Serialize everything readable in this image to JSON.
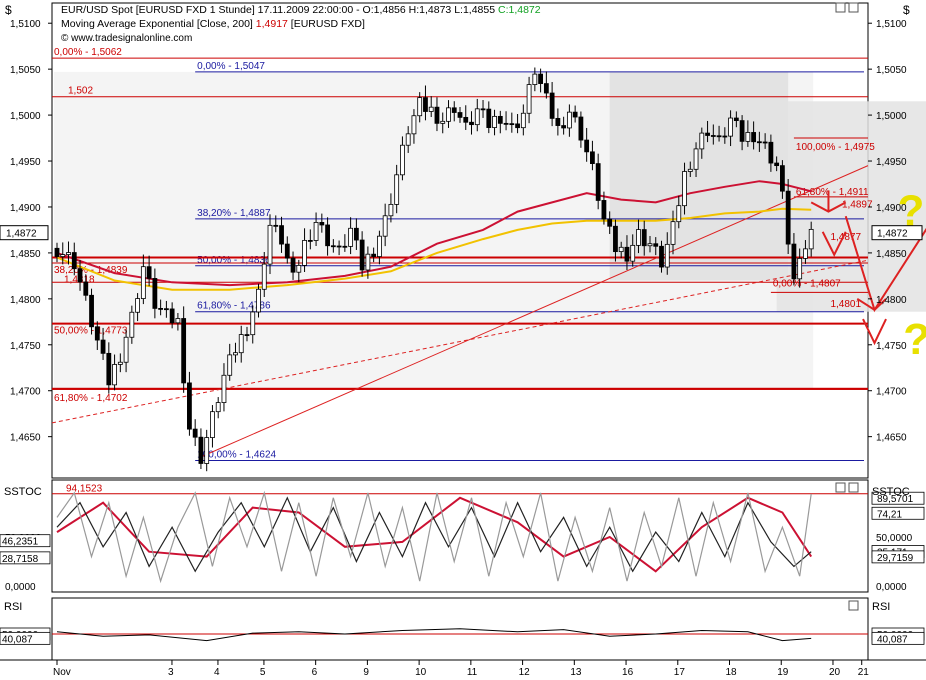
{
  "header": {
    "line1_a": "EUR/USD Spot [EURUSD FXD  1 Stunde] 17.11.2009 22:00:00 - O:1,4856 H:1,4873 L:1,4855 ",
    "line1_b": "C:1,4872",
    "line2_a": "Moving Average Exponential [Close, 200] ",
    "line2_b": "1,4917",
    "line2_c": " [EURUSD FXD]",
    "line3": "© www.tradesignalonline.com"
  },
  "panel_labels": {
    "currency": "$",
    "sstoc": "SSTOC",
    "rsi": "RSI"
  },
  "colors": {
    "candles": "#000000",
    "ema200": "#cc1133",
    "ema_yellow": "#f2c200",
    "fib_blue": "#1a1aa0",
    "fib_red": "#cc0000",
    "trend_red": "#dd2222",
    "annot_yellow": "#e8e000",
    "shade": "#e3e3e3",
    "stoch_red": "#cc1133",
    "stoch_black": "#222222",
    "stoch_gray": "#999999"
  },
  "chart_data": [
    {
      "type": "candlestick",
      "instrument": "EUR/USD Spot [EURUSD FXD 1 Stunde]",
      "timestamp": "17.11.2009 22:00:00",
      "last_bar": {
        "open": 1.4856,
        "high": 1.4873,
        "low": 1.4855,
        "close": 1.4872
      },
      "ylim": [
        1.4605,
        1.5122
      ],
      "y_ticks": [
        "1,5100",
        "1,5050",
        "1,5000",
        "1,4950",
        "1,4900",
        "1,4850",
        "1,4800",
        "1,4750",
        "1,4700",
        "1,4650"
      ],
      "x_ticks": [
        "Nov",
        "3",
        "4",
        "5",
        "6",
        "9",
        "10",
        "11",
        "12",
        "13",
        "16",
        "17",
        "18",
        "19",
        "20",
        "21"
      ],
      "price_path": [
        [
          0,
          1.4855
        ],
        [
          3,
          1.484
        ],
        [
          6,
          1.4775
        ],
        [
          9,
          1.471
        ],
        [
          11,
          1.474
        ],
        [
          13,
          1.478
        ],
        [
          15,
          1.4835
        ],
        [
          17,
          1.4795
        ],
        [
          19,
          1.478
        ],
        [
          21,
          1.4775
        ],
        [
          23,
          1.466
        ],
        [
          25,
          1.4628
        ],
        [
          27,
          1.467
        ],
        [
          29,
          1.4715
        ],
        [
          31,
          1.4745
        ],
        [
          33,
          1.477
        ],
        [
          35,
          1.4805
        ],
        [
          36,
          1.4845
        ],
        [
          37,
          1.488
        ],
        [
          39,
          1.4865
        ],
        [
          41,
          1.482
        ],
        [
          43,
          1.486
        ],
        [
          45,
          1.4885
        ],
        [
          47,
          1.4865
        ],
        [
          49,
          1.485
        ],
        [
          51,
          1.4875
        ],
        [
          53,
          1.4835
        ],
        [
          55,
          1.4855
        ],
        [
          57,
          1.4885
        ],
        [
          59,
          1.4935
        ],
        [
          61,
          1.4985
        ],
        [
          63,
          1.501
        ],
        [
          65,
          1.5005
        ],
        [
          67,
          1.4995
        ],
        [
          69,
          1.501
        ],
        [
          71,
          1.4985
        ],
        [
          73,
          1.5005
        ],
        [
          75,
          1.499
        ],
        [
          77,
          1.5
        ],
        [
          79,
          1.4985
        ],
        [
          81,
          1.5002
        ],
        [
          83,
          1.505
        ],
        [
          85,
          1.5015
        ],
        [
          87,
          1.4985
        ],
        [
          89,
          1.5005
        ],
        [
          91,
          1.498
        ],
        [
          93,
          1.494
        ],
        [
          95,
          1.4885
        ],
        [
          97,
          1.4855
        ],
        [
          99,
          1.485
        ],
        [
          101,
          1.487
        ],
        [
          103,
          1.486
        ],
        [
          105,
          1.484
        ],
        [
          107,
          1.4875
        ],
        [
          109,
          1.4935
        ],
        [
          111,
          1.4965
        ],
        [
          113,
          1.4985
        ],
        [
          115,
          1.497
        ],
        [
          117,
          1.4995
        ],
        [
          119,
          1.4975
        ],
        [
          121,
          1.498
        ],
        [
          123,
          1.4965
        ],
        [
          125,
          1.4945
        ],
        [
          126,
          1.491
        ],
        [
          127,
          1.4865
        ],
        [
          128,
          1.482
        ],
        [
          129,
          1.4835
        ],
        [
          130,
          1.4858
        ],
        [
          131,
          1.4872
        ]
      ],
      "series": [
        {
          "name": "Moving Average Exponential [Close, 200]",
          "last": 1.4917,
          "values": [
            [
              0,
              1.485
            ],
            [
              10,
              1.4828
            ],
            [
              20,
              1.4818
            ],
            [
              30,
              1.4815
            ],
            [
              40,
              1.4818
            ],
            [
              50,
              1.4825
            ],
            [
              58,
              1.4835
            ],
            [
              66,
              1.486
            ],
            [
              74,
              1.4875
            ],
            [
              80,
              1.4895
            ],
            [
              86,
              1.4905
            ],
            [
              92,
              1.4915
            ],
            [
              98,
              1.4908
            ],
            [
              104,
              1.4905
            ],
            [
              110,
              1.4915
            ],
            [
              116,
              1.4922
            ],
            [
              122,
              1.4928
            ],
            [
              126,
              1.4925
            ],
            [
              131,
              1.4917
            ]
          ]
        },
        {
          "name": "",
          "values": [
            [
              0,
              1.4845
            ],
            [
              10,
              1.482
            ],
            [
              20,
              1.481
            ],
            [
              30,
              1.481
            ],
            [
              40,
              1.4815
            ],
            [
              50,
              1.4822
            ],
            [
              58,
              1.483
            ],
            [
              66,
              1.485
            ],
            [
              74,
              1.4865
            ],
            [
              80,
              1.4875
            ],
            [
              86,
              1.4882
            ],
            [
              92,
              1.4885
            ],
            [
              98,
              1.4885
            ],
            [
              104,
              1.4885
            ],
            [
              110,
              1.4888
            ],
            [
              116,
              1.4893
            ],
            [
              122,
              1.4895
            ],
            [
              126,
              1.4898
            ],
            [
              131,
              1.4897
            ]
          ]
        }
      ],
      "fib_blue": [
        {
          "label": "0,00% - 1,5047",
          "value": 1.5047
        },
        {
          "label": "38,20% - 1,4887",
          "value": 1.4887
        },
        {
          "label": "50,00% - 1,4836",
          "value": 1.4836
        },
        {
          "label": "61,80% - 1,4786",
          "value": 1.4786
        },
        {
          "label": "100,00% - 1,4624",
          "value": 1.4624
        }
      ],
      "fib_red": [
        {
          "label": "0,00% - 1,5062",
          "value": 1.5062
        },
        {
          "label": "1,502",
          "value": 1.502
        },
        {
          "label": "38,20% - 1,4839",
          "value": 1.4839
        },
        {
          "label": "1,4818",
          "value": 1.4818
        },
        {
          "label": "50,00% - 1,4773",
          "value": 1.4773
        },
        {
          "label": "61,80% - 1,4702",
          "value": 1.4702
        },
        {
          "label": "100,00% - 1,4975",
          "value": 1.4975
        },
        {
          "label": "61,80% - 1,4911",
          "value": 1.4911
        },
        {
          "label": "1,4897",
          "value": 1.4897
        },
        {
          "label": "1,4877",
          "value": 1.4877
        },
        {
          "label": "0,00% - 1,4807",
          "value": 1.4807
        },
        {
          "label": "1,4801",
          "value": 1.4801
        }
      ],
      "support_levels": [
        1.4845,
        1.4773,
        1.4702
      ],
      "price_box": "1,4872",
      "annotations": [
        "?",
        "?"
      ]
    },
    {
      "type": "line",
      "name": "SSTOC",
      "ylim": [
        0,
        100
      ],
      "y_ticks": [
        "50,0000",
        "0,0000"
      ],
      "level_line": {
        "label": "94,1523",
        "value": 94.1523
      },
      "right_labels": [
        "89,5701",
        "74,21",
        "35,171",
        "29,7159"
      ],
      "left_labels": [
        "46,2351",
        "28,7158"
      ],
      "series": [
        {
          "name": "",
          "values": [
            [
              0,
              55
            ],
            [
              8,
              85
            ],
            [
              16,
              35
            ],
            [
              26,
              30
            ],
            [
              34,
              80
            ],
            [
              42,
              75
            ],
            [
              50,
              40
            ],
            [
              60,
              45
            ],
            [
              70,
              90
            ],
            [
              80,
              65
            ],
            [
              88,
              30
            ],
            [
              96,
              50
            ],
            [
              104,
              15
            ],
            [
              112,
              60
            ],
            [
              120,
              90
            ],
            [
              126,
              75
            ],
            [
              131,
              30
            ]
          ]
        },
        {
          "name": "",
          "values": [
            [
              0,
              60
            ],
            [
              4,
              85
            ],
            [
              8,
              40
            ],
            [
              12,
              75
            ],
            [
              16,
              20
            ],
            [
              20,
              60
            ],
            [
              24,
              15
            ],
            [
              28,
              55
            ],
            [
              32,
              85
            ],
            [
              36,
              40
            ],
            [
              40,
              90
            ],
            [
              44,
              35
            ],
            [
              48,
              80
            ],
            [
              52,
              25
            ],
            [
              56,
              75
            ],
            [
              60,
              30
            ],
            [
              64,
              85
            ],
            [
              68,
              40
            ],
            [
              72,
              80
            ],
            [
              76,
              30
            ],
            [
              80,
              85
            ],
            [
              84,
              35
            ],
            [
              88,
              70
            ],
            [
              92,
              20
            ],
            [
              96,
              60
            ],
            [
              100,
              15
            ],
            [
              104,
              55
            ],
            [
              108,
              25
            ],
            [
              112,
              75
            ],
            [
              116,
              30
            ],
            [
              120,
              85
            ],
            [
              124,
              45
            ],
            [
              128,
              20
            ],
            [
              131,
              35
            ]
          ]
        },
        {
          "name": "",
          "values": [
            [
              0,
              70
            ],
            [
              3,
              95
            ],
            [
              6,
              30
            ],
            [
              9,
              85
            ],
            [
              12,
              10
            ],
            [
              15,
              70
            ],
            [
              18,
              5
            ],
            [
              21,
              60
            ],
            [
              24,
              95
            ],
            [
              27,
              20
            ],
            [
              30,
              90
            ],
            [
              33,
              40
            ],
            [
              36,
              95
            ],
            [
              39,
              15
            ],
            [
              42,
              85
            ],
            [
              45,
              10
            ],
            [
              48,
              90
            ],
            [
              51,
              30
            ],
            [
              54,
              95
            ],
            [
              57,
              20
            ],
            [
              60,
              80
            ],
            [
              63,
              5
            ],
            [
              66,
              95
            ],
            [
              69,
              25
            ],
            [
              72,
              90
            ],
            [
              75,
              10
            ],
            [
              78,
              85
            ],
            [
              81,
              30
            ],
            [
              84,
              95
            ],
            [
              87,
              5
            ],
            [
              90,
              70
            ],
            [
              93,
              15
            ],
            [
              96,
              80
            ],
            [
              99,
              5
            ],
            [
              102,
              75
            ],
            [
              105,
              20
            ],
            [
              108,
              90
            ],
            [
              111,
              10
            ],
            [
              114,
              85
            ],
            [
              117,
              25
            ],
            [
              120,
              95
            ],
            [
              123,
              15
            ],
            [
              126,
              60
            ],
            [
              129,
              10
            ],
            [
              131,
              94
            ]
          ]
        }
      ]
    },
    {
      "type": "line",
      "name": "RSI",
      "ylim": [
        0,
        100
      ],
      "level_line": {
        "value": 50
      },
      "left_labels": [
        "50,0000",
        "40,087"
      ],
      "right_labels": [
        "50,0000",
        "40,087"
      ],
      "series": [
        {
          "name": "",
          "values": [
            [
              0,
              55
            ],
            [
              8,
              45
            ],
            [
              16,
              48
            ],
            [
              26,
              35
            ],
            [
              34,
              52
            ],
            [
              42,
              55
            ],
            [
              50,
              50
            ],
            [
              60,
              58
            ],
            [
              70,
              62
            ],
            [
              80,
              55
            ],
            [
              88,
              60
            ],
            [
              96,
              45
            ],
            [
              104,
              50
            ],
            [
              112,
              58
            ],
            [
              120,
              55
            ],
            [
              126,
              35
            ],
            [
              131,
              40
            ]
          ]
        }
      ]
    }
  ]
}
